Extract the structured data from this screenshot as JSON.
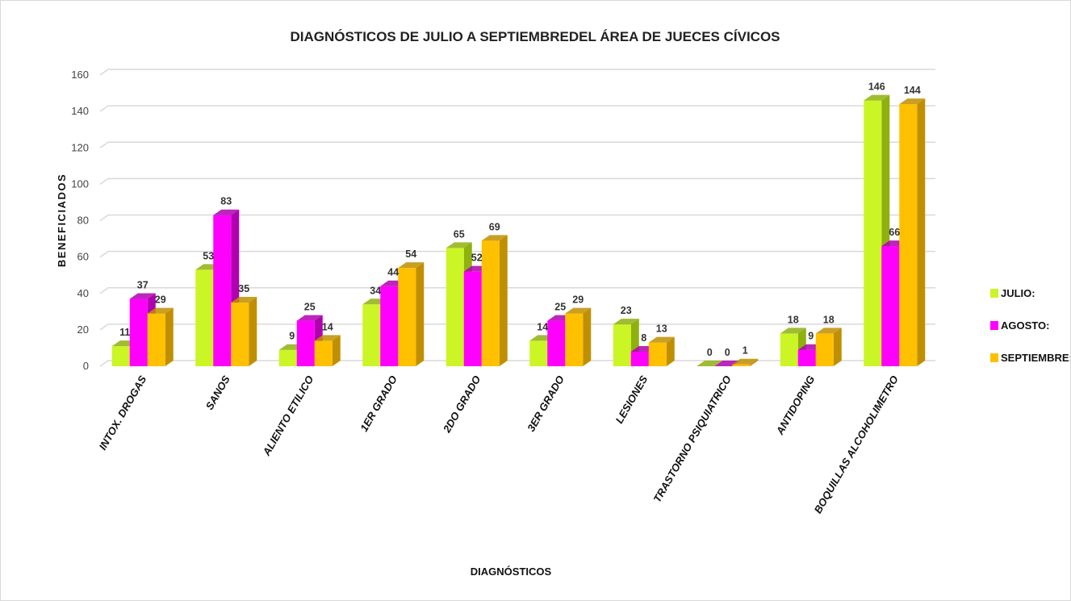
{
  "chart_data": {
    "type": "bar",
    "title": "DIAGNÓSTICOS DE JULIO A SEPTIEMBREDEL ÁREA DE JUECES CÍVICOS",
    "xlabel": "DIAGNÓSTICOS",
    "ylabel": "BENEFICIADOS",
    "ylim": [
      0,
      160
    ],
    "yticks": [
      0,
      20,
      40,
      60,
      80,
      100,
      120,
      140,
      160
    ],
    "grid": true,
    "legend_position": "right",
    "categories": [
      "INTOX. DROGAS",
      "SANOS",
      "ALIENTO ETILICO",
      "1ER GRADO",
      "2DO GRADO",
      "3ER GRADO",
      "LESIONES",
      "TRASTORNO PSIQUIATRICO",
      "ANTIDOPING",
      "BOQUILLAS ALCOHOLIMETRO"
    ],
    "series": [
      {
        "name": "JULIO:",
        "color": "#ccf526",
        "side_color": "#8fb00f",
        "values": [
          11,
          53,
          9,
          34,
          65,
          14,
          23,
          0,
          18,
          146
        ]
      },
      {
        "name": "AGOSTO:",
        "color": "#ff00ff",
        "side_color": "#b000b0",
        "values": [
          37,
          83,
          25,
          44,
          52,
          25,
          8,
          0,
          9,
          66
        ]
      },
      {
        "name": "SEPTIEMBRE:",
        "color": "#ffc000",
        "side_color": "#c08f00",
        "values": [
          29,
          35,
          14,
          54,
          69,
          29,
          13,
          1,
          18,
          144
        ]
      }
    ]
  }
}
